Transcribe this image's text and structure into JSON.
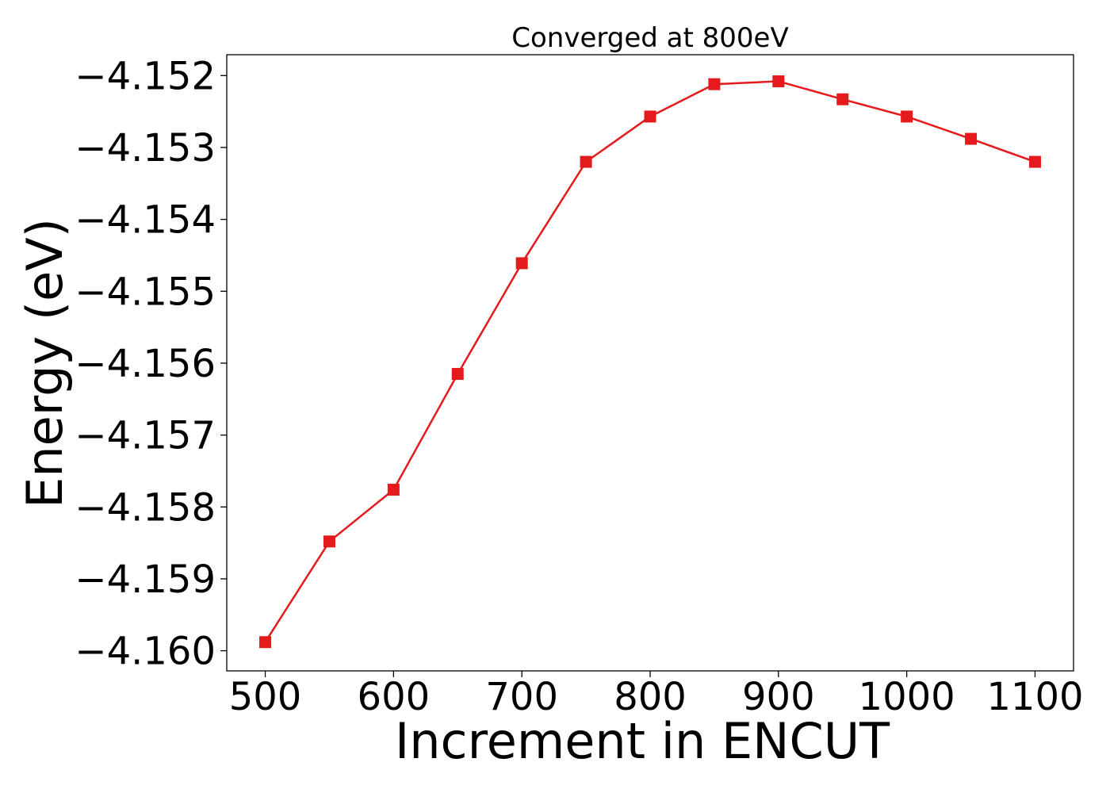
{
  "chart_data": {
    "type": "line",
    "title": "Converged at 800eV",
    "xlabel": "Increment in ENCUT",
    "ylabel": "Energy (eV)",
    "xlim": [
      470,
      1130
    ],
    "ylim": [
      -4.16028,
      -4.15171
    ],
    "xticks": [
      500,
      600,
      700,
      800,
      900,
      1000,
      1100
    ],
    "xtick_labels": [
      "500",
      "600",
      "700",
      "800",
      "900",
      "1000",
      "1100"
    ],
    "yticks": [
      -4.152,
      -4.153,
      -4.154,
      -4.155,
      -4.156,
      -4.157,
      -4.158,
      -4.159,
      -4.16
    ],
    "ytick_labels": [
      "−4.152",
      "−4.153",
      "−4.154",
      "−4.155",
      "−4.156",
      "−4.157",
      "−4.158",
      "−4.159",
      "−4.160"
    ],
    "grid": false,
    "series": [
      {
        "color": "#e41a1c",
        "marker": "square",
        "x": [
          500,
          550,
          600,
          650,
          700,
          750,
          800,
          850,
          900,
          950,
          1000,
          1050,
          1100
        ],
        "y": [
          -4.15988,
          -4.15848,
          -4.15776,
          -4.15615,
          -4.15461,
          -4.1532,
          -4.15257,
          -4.15212,
          -4.15208,
          -4.15233,
          -4.15257,
          -4.15288,
          -4.1532
        ]
      }
    ]
  }
}
